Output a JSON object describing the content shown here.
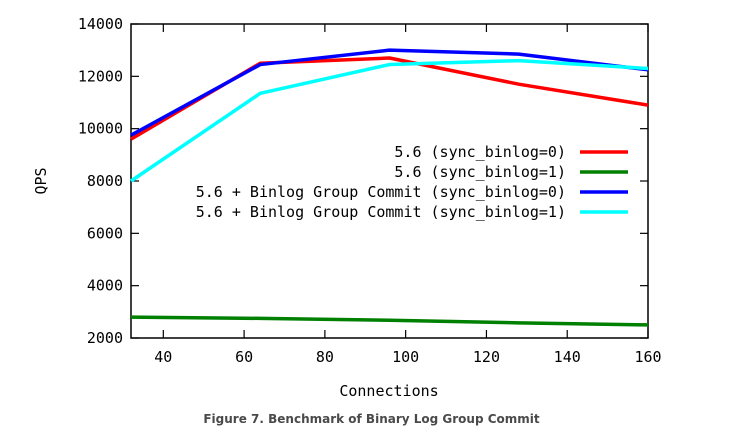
{
  "chart_data": {
    "type": "line",
    "title": "",
    "xlabel": "Connections",
    "ylabel": "QPS",
    "xlim": [
      32,
      160
    ],
    "ylim": [
      2000,
      14000
    ],
    "xticks": [
      40,
      60,
      80,
      100,
      120,
      140,
      160
    ],
    "yticks": [
      2000,
      4000,
      6000,
      8000,
      10000,
      12000,
      14000
    ],
    "grid": false,
    "legend_position": "right",
    "series": [
      {
        "name": "5.6 (sync_binlog=0)",
        "color": "#ff0000",
        "x": [
          32,
          64,
          96,
          128,
          160
        ],
        "y": [
          9600,
          12500,
          12700,
          11700,
          10900
        ]
      },
      {
        "name": "5.6 (sync_binlog=1)",
        "color": "#008000",
        "x": [
          32,
          64,
          96,
          128,
          160
        ],
        "y": [
          2800,
          2750,
          2680,
          2580,
          2500
        ]
      },
      {
        "name": "5.6 + Binlog Group Commit (sync_binlog=0)",
        "color": "#0000ff",
        "x": [
          32,
          64,
          96,
          128,
          160
        ],
        "y": [
          9750,
          12450,
          13000,
          12850,
          12250
        ]
      },
      {
        "name": "5.6 + Binlog Group Commit (sync_binlog=1)",
        "color": "#00ffff",
        "x": [
          32,
          64,
          96,
          128,
          160
        ],
        "y": [
          8000,
          11350,
          12450,
          12600,
          12300
        ]
      }
    ]
  },
  "caption": "Figure 7. Benchmark of Binary Log Group Commit"
}
